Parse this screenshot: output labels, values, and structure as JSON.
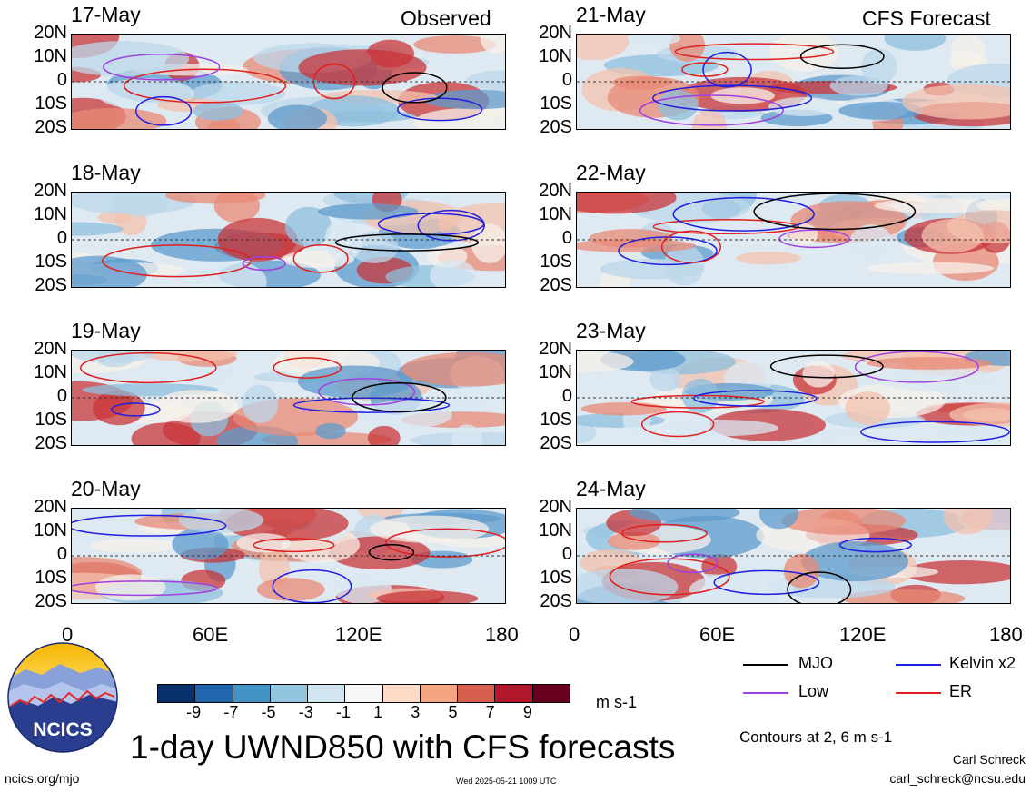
{
  "left_header": "Observed",
  "right_header": "CFS Forecast",
  "y_ticks": [
    "20N",
    "10N",
    "0",
    "10S",
    "20S"
  ],
  "x_ticks": [
    "0",
    "60E",
    "120E",
    "180"
  ],
  "panels_left": [
    {
      "date": "17-May"
    },
    {
      "date": "18-May"
    },
    {
      "date": "19-May"
    },
    {
      "date": "20-May"
    }
  ],
  "panels_right": [
    {
      "date": "21-May"
    },
    {
      "date": "22-May"
    },
    {
      "date": "23-May"
    },
    {
      "date": "24-May"
    }
  ],
  "legend": [
    {
      "label": "MJO",
      "color": "#000000"
    },
    {
      "label": "Kelvin x2",
      "color": "#1f1fe0"
    },
    {
      "label": "Low",
      "color": "#a040e0"
    },
    {
      "label": "ER",
      "color": "#e01f1f"
    }
  ],
  "contours_note": "Contours at 2, 6 m s-1",
  "colorbar": {
    "labels": [
      "-9",
      "-7",
      "-5",
      "-3",
      "-1",
      "1",
      "3",
      "5",
      "7",
      "9"
    ],
    "colors": [
      "#08306b",
      "#2166ac",
      "#4393c3",
      "#92c5de",
      "#d1e5f0",
      "#f7f7f7",
      "#fddbc7",
      "#f4a582",
      "#d6604d",
      "#b2182b",
      "#67001f"
    ],
    "units": "m s-1"
  },
  "title": "1-day UWND850 with CFS forecasts",
  "logo_text": "NCICS",
  "footer_left": "ncics.org/mjo",
  "footer_center": "Wed 2025-05-21 1009 UTC",
  "author": "Carl Schreck",
  "email": "carl_schreck@ncsu.edu",
  "chart_data": {
    "type": "heatmap",
    "variable": "1-day UWND850 with CFS forecasts",
    "units": "m s-1",
    "xlim": [
      "0",
      "180"
    ],
    "ylim": [
      "20S",
      "20N"
    ],
    "colorbar_levels": [
      -9,
      -7,
      -5,
      -3,
      -1,
      1,
      3,
      5,
      7,
      9
    ],
    "contour_levels": [
      2,
      6
    ],
    "observed_dates": [
      "17-May",
      "18-May",
      "19-May",
      "20-May"
    ],
    "forecast_dates": [
      "21-May",
      "22-May",
      "23-May",
      "24-May"
    ],
    "series": [
      {
        "name": "MJO",
        "color": "#000000"
      },
      {
        "name": "Kelvin x2",
        "color": "#1f1fe0"
      },
      {
        "name": "Low",
        "color": "#a040e0"
      },
      {
        "name": "ER",
        "color": "#e01f1f"
      }
    ]
  }
}
